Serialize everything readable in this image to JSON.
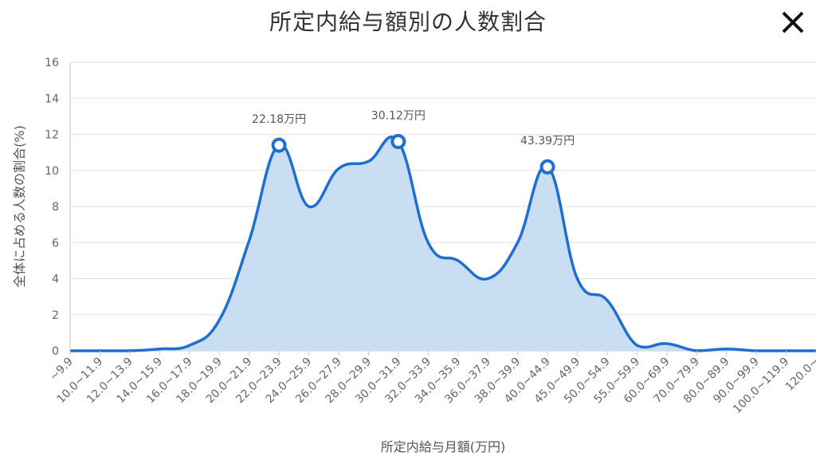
{
  "window": {
    "title": "所定内給与額別の人数割合",
    "close_icon": "close-icon"
  },
  "colors": {
    "line": "#1f6fd1",
    "fill": "#c9ddf3",
    "grid": "#e2e2e2",
    "axis": "#c9c9c9"
  },
  "chart_data": {
    "type": "area",
    "title": "",
    "xlabel": "所定内給与月額(万円)",
    "ylabel": "全体に占める人数の割合(%)",
    "ylim": [
      0,
      16
    ],
    "yticks": [
      "0",
      "2",
      "4",
      "6",
      "8",
      "10",
      "12",
      "14",
      "16"
    ],
    "grid": true,
    "categories": [
      "~9.9",
      "10.0~11.9",
      "12.0~13.9",
      "14.0~15.9",
      "16.0~17.9",
      "18.0~19.9",
      "20.0~21.9",
      "22.0~23.9",
      "24.0~25.9",
      "26.0~27.9",
      "28.0~29.9",
      "30.0~31.9",
      "32.0~33.9",
      "34.0~35.9",
      "36.0~37.9",
      "38.0~39.9",
      "40.0~44.9",
      "45.0~49.9",
      "50.0~54.9",
      "55.0~59.9",
      "60.0~69.9",
      "70.0~79.9",
      "80.0~89.9",
      "90.0~99.9",
      "100.0~119.9",
      "120.0~"
    ],
    "series": [
      {
        "values": [
          0,
          0,
          0,
          0.1,
          0.3,
          1.7,
          6.1,
          11.4,
          8.0,
          10.1,
          10.5,
          11.6,
          6.0,
          5.0,
          4.0,
          6.0,
          10.2,
          4.0,
          2.8,
          0.3,
          0.4,
          0.0,
          0.1,
          0,
          0,
          0
        ]
      }
    ],
    "annotations": [
      {
        "index": 7,
        "label": "22.18万円"
      },
      {
        "index": 11,
        "label": "30.12万円"
      },
      {
        "index": 16,
        "label": "43.39万円"
      }
    ]
  }
}
